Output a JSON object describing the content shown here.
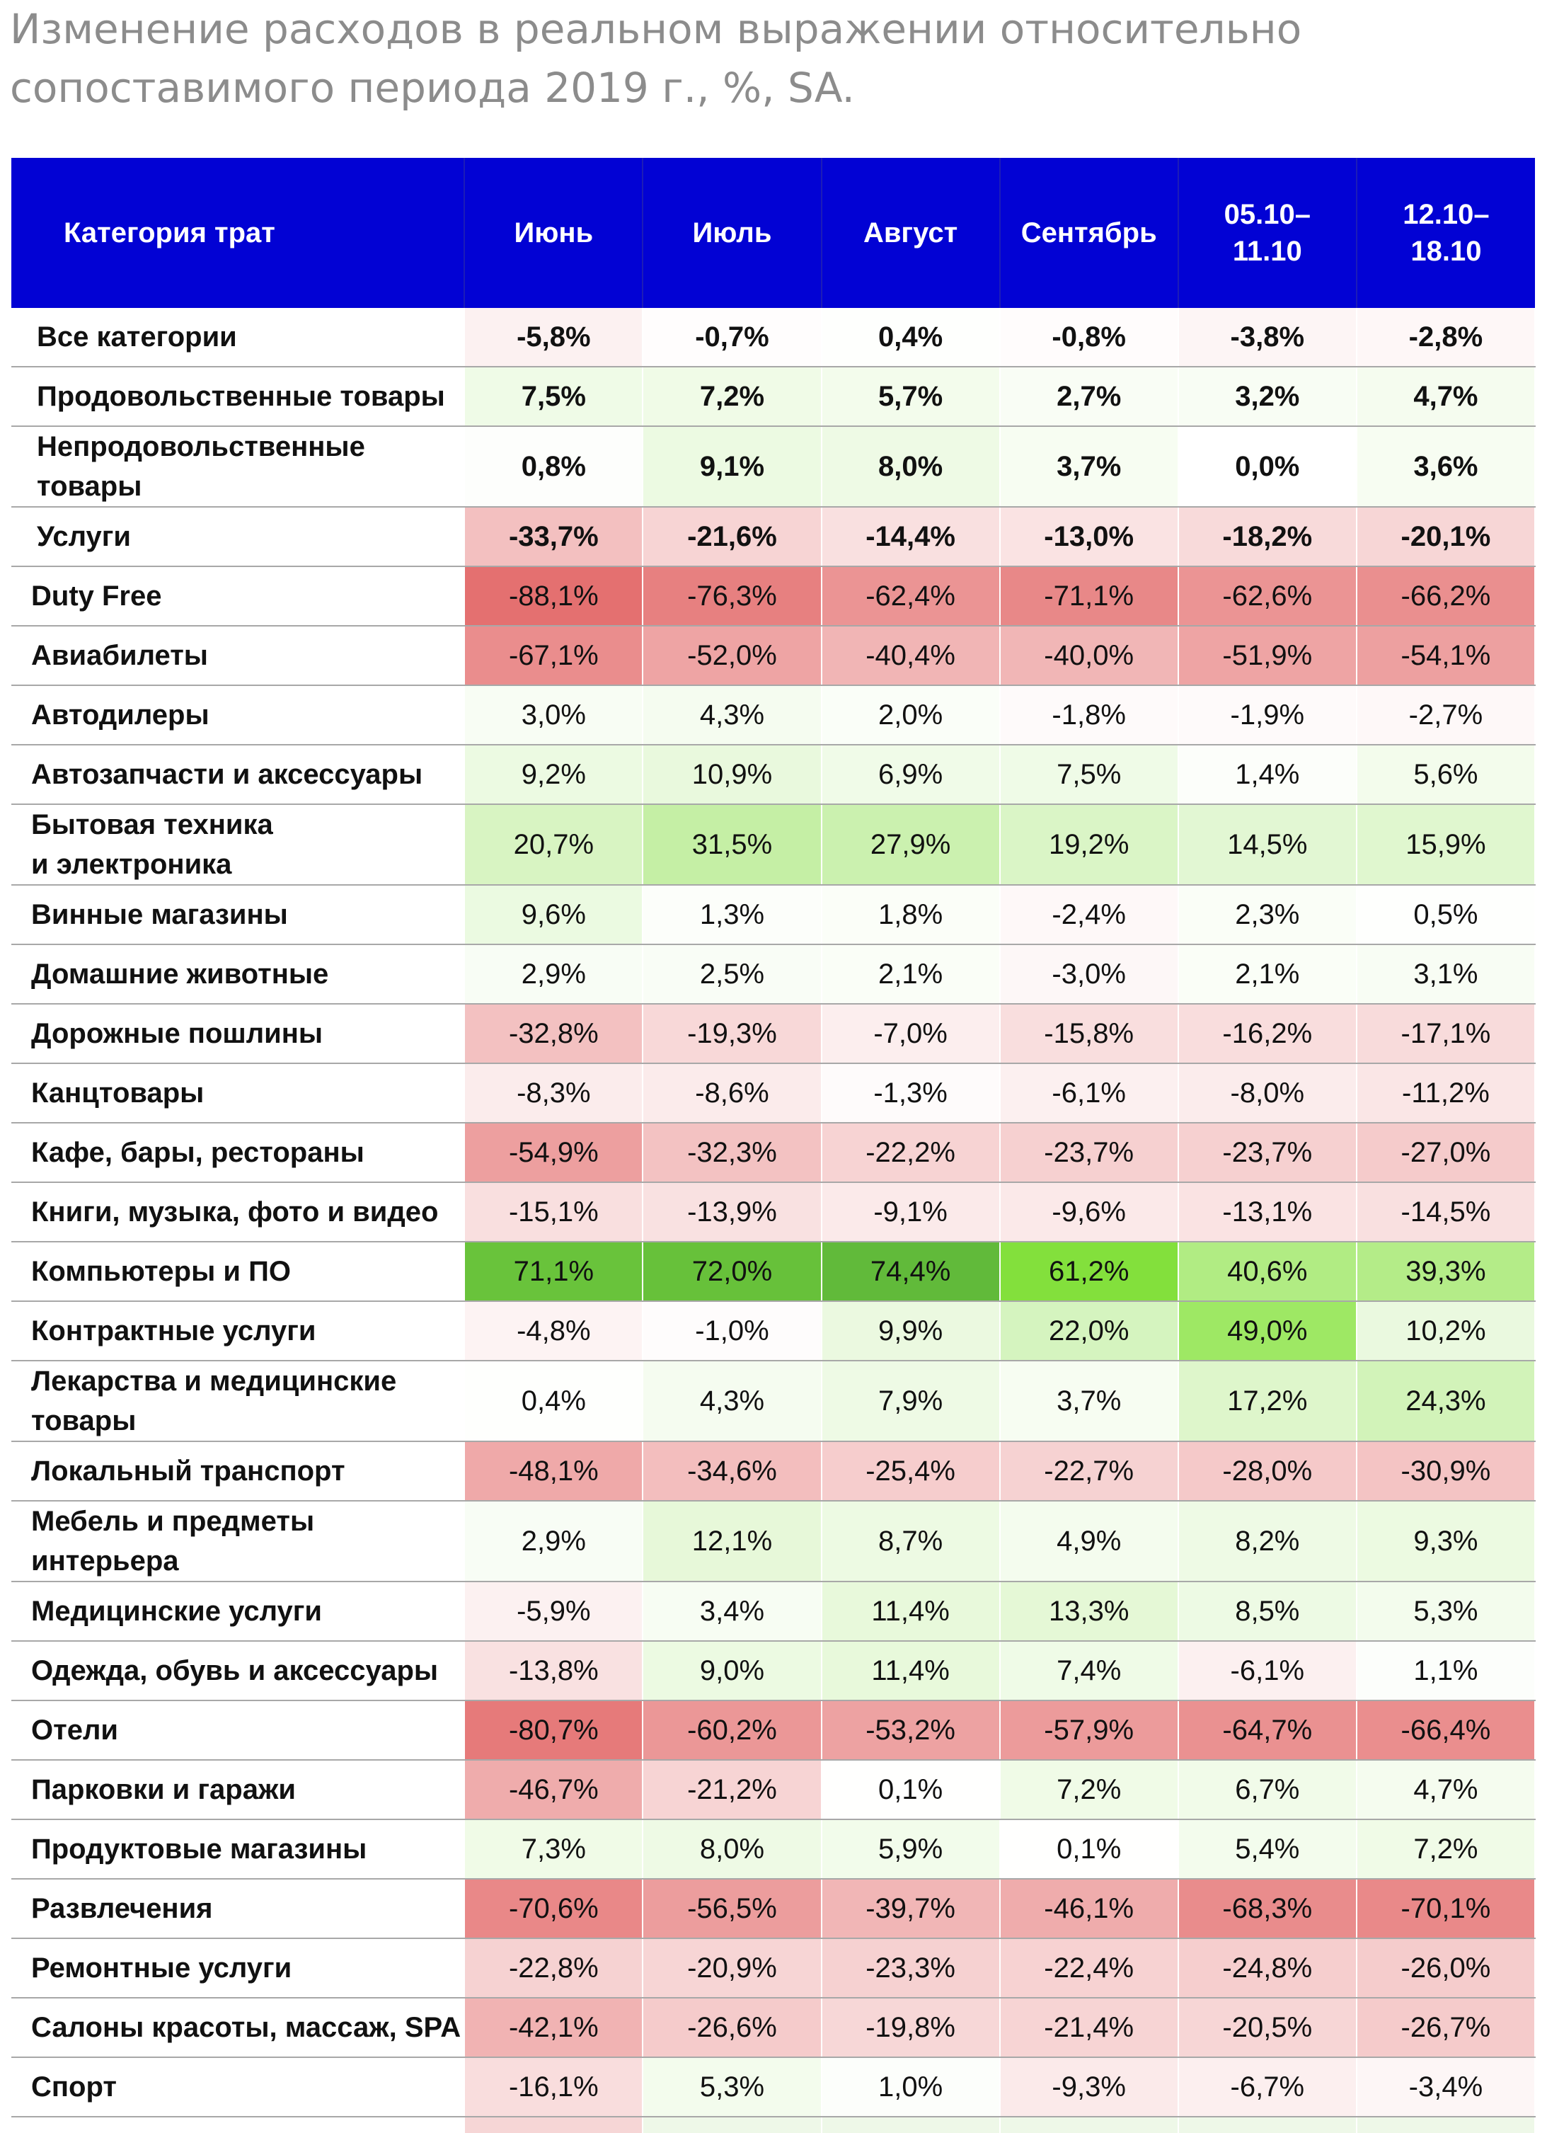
{
  "title": {
    "line1": "Изменение расходов в реальном выражении относительно",
    "line2": "сопоставимого периода 2019 г., %, SA."
  },
  "chart_data": {
    "type": "table",
    "columns": [
      "Категория трат",
      "Июнь",
      "Июль",
      "Август",
      "Сентябрь",
      "05.10–11.10",
      "12.10–18.10"
    ],
    "header_lines": [
      [
        "Категория трат"
      ],
      [
        "Июнь"
      ],
      [
        "Июль"
      ],
      [
        "Август"
      ],
      [
        "Сентябрь"
      ],
      [
        "05.10–",
        "11.10"
      ],
      [
        "12.10–",
        "18.10"
      ]
    ],
    "rows": [
      {
        "lines": [
          "Все категории"
        ],
        "values": [
          -5.8,
          -0.7,
          0.4,
          -0.8,
          -3.8,
          -2.8
        ],
        "labels": [
          "-5,8%",
          "-0,7%",
          "0,4%",
          "-0,8%",
          "-3,8%",
          "-2,8%"
        ],
        "bold": true
      },
      {
        "lines": [
          "Продовольственные товары"
        ],
        "values": [
          7.5,
          7.2,
          5.7,
          2.7,
          3.2,
          4.7
        ],
        "labels": [
          "7,5%",
          "7,2%",
          "5,7%",
          "2,7%",
          "3,2%",
          "4,7%"
        ],
        "bold": true
      },
      {
        "lines": [
          "Непродовольственные",
          "товары"
        ],
        "values": [
          0.8,
          9.1,
          8.0,
          3.7,
          0.0,
          3.6
        ],
        "labels": [
          "0,8%",
          "9,1%",
          "8,0%",
          "3,7%",
          "0,0%",
          "3,6%"
        ],
        "bold": true
      },
      {
        "lines": [
          "Услуги"
        ],
        "values": [
          -33.7,
          -21.6,
          -14.4,
          -13.0,
          -18.2,
          -20.1
        ],
        "labels": [
          "-33,7%",
          "-21,6%",
          "-14,4%",
          "-13,0%",
          "-18,2%",
          "-20,1%"
        ],
        "bold": true
      },
      {
        "lines": [
          "Duty Free"
        ],
        "values": [
          -88.1,
          -76.3,
          -62.4,
          -71.1,
          -62.6,
          -66.2
        ],
        "labels": [
          "-88,1%",
          "-76,3%",
          "-62,4%",
          "-71,1%",
          "-62,6%",
          "-66,2%"
        ]
      },
      {
        "lines": [
          "Авиабилеты"
        ],
        "values": [
          -67.1,
          -52.0,
          -40.4,
          -40.0,
          -51.9,
          -54.1
        ],
        "labels": [
          "-67,1%",
          "-52,0%",
          "-40,4%",
          "-40,0%",
          "-51,9%",
          "-54,1%"
        ]
      },
      {
        "lines": [
          "Автодилеры"
        ],
        "values": [
          3.0,
          4.3,
          2.0,
          -1.8,
          -1.9,
          -2.7
        ],
        "labels": [
          "3,0%",
          "4,3%",
          "2,0%",
          "-1,8%",
          "-1,9%",
          "-2,7%"
        ]
      },
      {
        "lines": [
          "Автозапчасти и аксессуары"
        ],
        "values": [
          9.2,
          10.9,
          6.9,
          7.5,
          1.4,
          5.6
        ],
        "labels": [
          "9,2%",
          "10,9%",
          "6,9%",
          "7,5%",
          "1,4%",
          "5,6%"
        ]
      },
      {
        "lines": [
          "Бытовая техника",
          "и электроника"
        ],
        "values": [
          20.7,
          31.5,
          27.9,
          19.2,
          14.5,
          15.9
        ],
        "labels": [
          "20,7%",
          "31,5%",
          "27,9%",
          "19,2%",
          "14,5%",
          "15,9%"
        ]
      },
      {
        "lines": [
          "Винные магазины"
        ],
        "values": [
          9.6,
          1.3,
          1.8,
          -2.4,
          2.3,
          0.5
        ],
        "labels": [
          "9,6%",
          "1,3%",
          "1,8%",
          "-2,4%",
          "2,3%",
          "0,5%"
        ]
      },
      {
        "lines": [
          "Домашние животные"
        ],
        "values": [
          2.9,
          2.5,
          2.1,
          -3.0,
          2.1,
          3.1
        ],
        "labels": [
          "2,9%",
          "2,5%",
          "2,1%",
          "-3,0%",
          "2,1%",
          "3,1%"
        ]
      },
      {
        "lines": [
          "Дорожные пошлины"
        ],
        "values": [
          -32.8,
          -19.3,
          -7.0,
          -15.8,
          -16.2,
          -17.1
        ],
        "labels": [
          "-32,8%",
          "-19,3%",
          "-7,0%",
          "-15,8%",
          "-16,2%",
          "-17,1%"
        ]
      },
      {
        "lines": [
          "Канцтовары"
        ],
        "values": [
          -8.3,
          -8.6,
          -1.3,
          -6.1,
          -8.0,
          -11.2
        ],
        "labels": [
          "-8,3%",
          "-8,6%",
          "-1,3%",
          "-6,1%",
          "-8,0%",
          "-11,2%"
        ]
      },
      {
        "lines": [
          "Кафе, бары, рестораны"
        ],
        "values": [
          -54.9,
          -32.3,
          -22.2,
          -23.7,
          -23.7,
          -27.0
        ],
        "labels": [
          "-54,9%",
          "-32,3%",
          "-22,2%",
          "-23,7%",
          "-23,7%",
          "-27,0%"
        ]
      },
      {
        "lines": [
          "Книги, музыка, фото и видео"
        ],
        "values": [
          -15.1,
          -13.9,
          -9.1,
          -9.6,
          -13.1,
          -14.5
        ],
        "labels": [
          "-15,1%",
          "-13,9%",
          "-9,1%",
          "-9,6%",
          "-13,1%",
          "-14,5%"
        ]
      },
      {
        "lines": [
          "Компьютеры и ПО"
        ],
        "values": [
          71.1,
          72.0,
          74.4,
          61.2,
          40.6,
          39.3
        ],
        "labels": [
          "71,1%",
          "72,0%",
          "74,4%",
          "61,2%",
          "40,6%",
          "39,3%"
        ]
      },
      {
        "lines": [
          "Контрактные услуги"
        ],
        "values": [
          -4.8,
          -1.0,
          9.9,
          22.0,
          49.0,
          10.2
        ],
        "labels": [
          "-4,8%",
          "-1,0%",
          "9,9%",
          "22,0%",
          "49,0%",
          "10,2%"
        ]
      },
      {
        "lines": [
          "Лекарства и медицинские",
          "товары"
        ],
        "values": [
          0.4,
          4.3,
          7.9,
          3.7,
          17.2,
          24.3
        ],
        "labels": [
          "0,4%",
          "4,3%",
          "7,9%",
          "3,7%",
          "17,2%",
          "24,3%"
        ]
      },
      {
        "lines": [
          "Локальный транспорт"
        ],
        "values": [
          -48.1,
          -34.6,
          -25.4,
          -22.7,
          -28.0,
          -30.9
        ],
        "labels": [
          "-48,1%",
          "-34,6%",
          "-25,4%",
          "-22,7%",
          "-28,0%",
          "-30,9%"
        ]
      },
      {
        "lines": [
          "Мебель и предметы",
          "интерьера"
        ],
        "values": [
          2.9,
          12.1,
          8.7,
          4.9,
          8.2,
          9.3
        ],
        "labels": [
          "2,9%",
          "12,1%",
          "8,7%",
          "4,9%",
          "8,2%",
          "9,3%"
        ]
      },
      {
        "lines": [
          "Медицинские услуги"
        ],
        "values": [
          -5.9,
          3.4,
          11.4,
          13.3,
          8.5,
          5.3
        ],
        "labels": [
          "-5,9%",
          "3,4%",
          "11,4%",
          "13,3%",
          "8,5%",
          "5,3%"
        ]
      },
      {
        "lines": [
          "Одежда, обувь и аксессуары"
        ],
        "values": [
          -13.8,
          9.0,
          11.4,
          7.4,
          -6.1,
          1.1
        ],
        "labels": [
          "-13,8%",
          "9,0%",
          "11,4%",
          "7,4%",
          "-6,1%",
          "1,1%"
        ]
      },
      {
        "lines": [
          "Отели"
        ],
        "values": [
          -80.7,
          -60.2,
          -53.2,
          -57.9,
          -64.7,
          -66.4
        ],
        "labels": [
          "-80,7%",
          "-60,2%",
          "-53,2%",
          "-57,9%",
          "-64,7%",
          "-66,4%"
        ]
      },
      {
        "lines": [
          "Парковки и гаражи"
        ],
        "values": [
          -46.7,
          -21.2,
          0.1,
          7.2,
          6.7,
          4.7
        ],
        "labels": [
          "-46,7%",
          "-21,2%",
          "0,1%",
          "7,2%",
          "6,7%",
          "4,7%"
        ]
      },
      {
        "lines": [
          "Продуктовые магазины"
        ],
        "values": [
          7.3,
          8.0,
          5.9,
          0.1,
          5.4,
          7.2
        ],
        "labels": [
          "7,3%",
          "8,0%",
          "5,9%",
          "0,1%",
          "5,4%",
          "7,2%"
        ]
      },
      {
        "lines": [
          "Развлечения"
        ],
        "values": [
          -70.6,
          -56.5,
          -39.7,
          -46.1,
          -68.3,
          -70.1
        ],
        "labels": [
          "-70,6%",
          "-56,5%",
          "-39,7%",
          "-46,1%",
          "-68,3%",
          "-70,1%"
        ]
      },
      {
        "lines": [
          "Ремонтные услуги"
        ],
        "values": [
          -22.8,
          -20.9,
          -23.3,
          -22.4,
          -24.8,
          -26.0
        ],
        "labels": [
          "-22,8%",
          "-20,9%",
          "-23,3%",
          "-22,4%",
          "-24,8%",
          "-26,0%"
        ]
      },
      {
        "lines": [
          "Салоны красоты, массаж, SPA"
        ],
        "values": [
          -42.1,
          -26.6,
          -19.8,
          -21.4,
          -20.5,
          -26.7
        ],
        "labels": [
          "-42,1%",
          "-26,6%",
          "-19,8%",
          "-21,4%",
          "-20,5%",
          "-26,7%"
        ]
      },
      {
        "lines": [
          "Спорт"
        ],
        "values": [
          -16.1,
          5.3,
          1.0,
          -9.3,
          -6.7,
          -3.4
        ],
        "labels": [
          "-16,1%",
          "5,3%",
          "1,0%",
          "-9,3%",
          "-6,7%",
          "-3,4%"
        ]
      }
    ],
    "colors": {
      "header_bg": "#0202d4",
      "header_text": "#ffffff",
      "negative_max": "#e47070",
      "positive_strong": "#5fb83a",
      "positive_bright": "#86e63a",
      "neutral": "#ffffff"
    }
  }
}
